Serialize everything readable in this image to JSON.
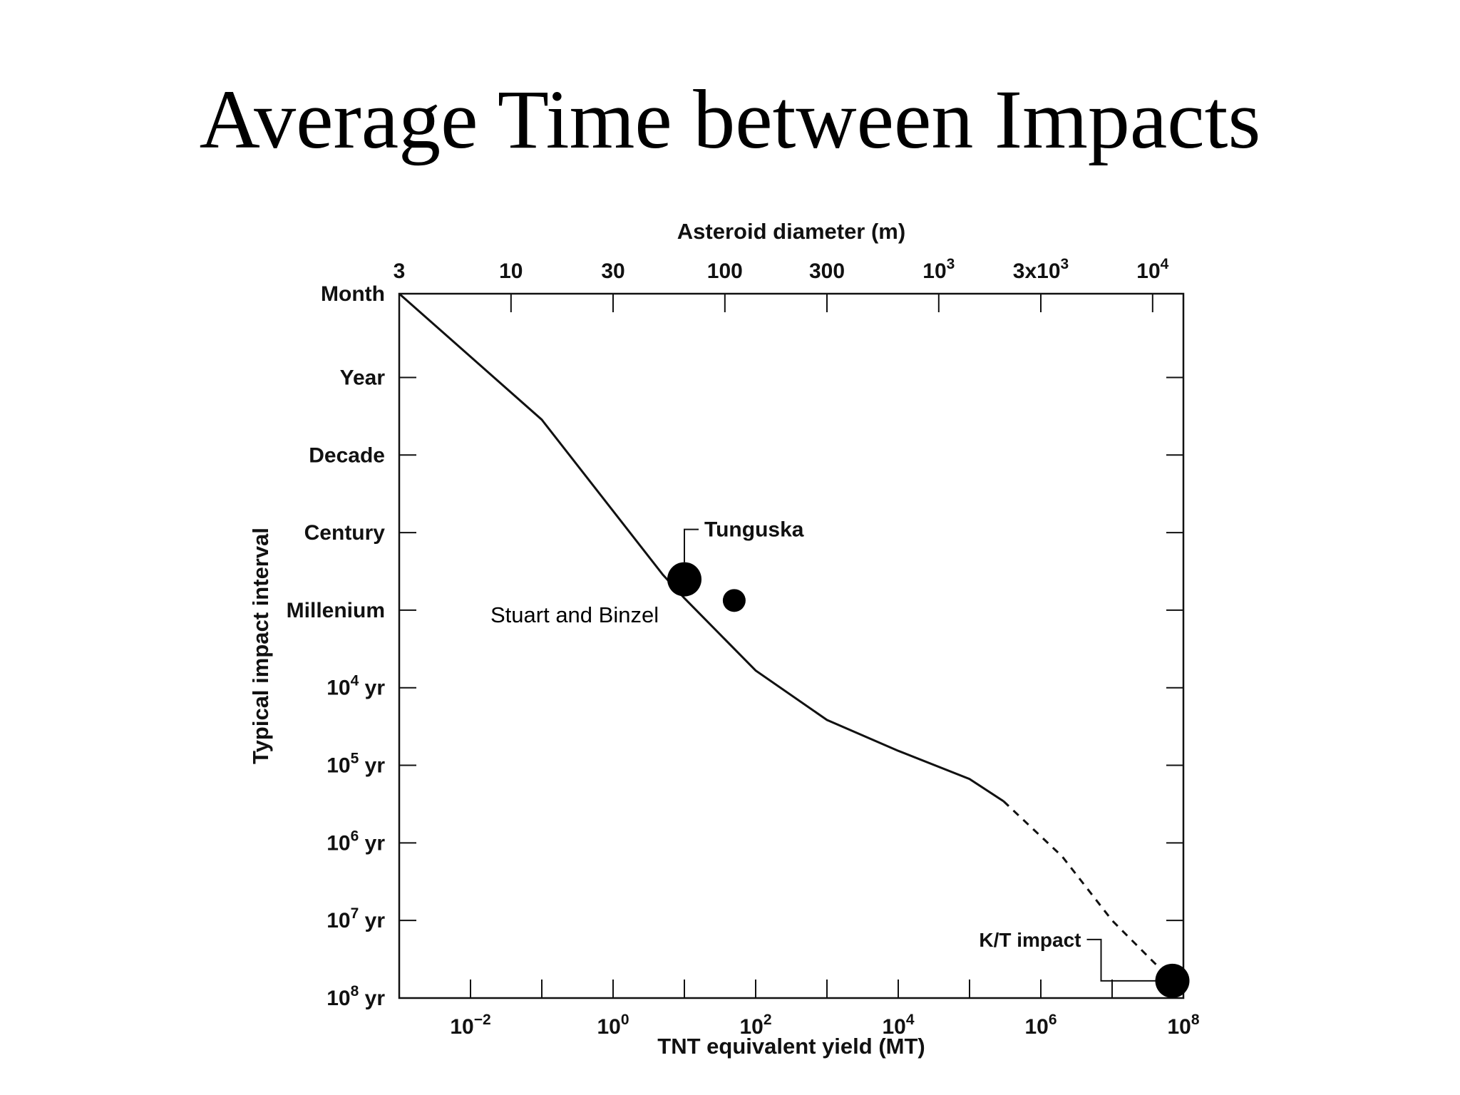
{
  "slide": {
    "title": "Average Time between Impacts"
  },
  "colors": {
    "ink": "#111111",
    "background": "#ffffff"
  },
  "chart_data": {
    "type": "line",
    "title": "",
    "xlabel": "TNT equivalent yield (MT)",
    "ylabel": "Typical impact interval",
    "x2label": "Asteroid diameter (m)",
    "x_scale": "log",
    "y_scale": "log",
    "xlim": [
      0.001,
      100000000
    ],
    "ylim": [
      0.0833,
      100000000
    ],
    "grid": false,
    "x_ticks": [
      {
        "value": 0.01,
        "base": "10",
        "exp": "−2"
      },
      {
        "value": 1,
        "base": "10",
        "exp": "0"
      },
      {
        "value": 100,
        "base": "10",
        "exp": "2"
      },
      {
        "value": 10000,
        "base": "10",
        "exp": "4"
      },
      {
        "value": 1000000,
        "base": "10",
        "exp": "6"
      },
      {
        "value": 100000000,
        "base": "10",
        "exp": "8"
      }
    ],
    "y_ticks": [
      {
        "value": 0.0833,
        "label": "Month"
      },
      {
        "value": 1,
        "label": "Year"
      },
      {
        "value": 10,
        "label": "Decade"
      },
      {
        "value": 100,
        "label": "Century"
      },
      {
        "value": 1000,
        "label": "Millenium"
      },
      {
        "value": 10000,
        "base": "10",
        "exp": "4",
        "unit": " yr"
      },
      {
        "value": 100000,
        "base": "10",
        "exp": "5",
        "unit": " yr"
      },
      {
        "value": 1000000,
        "base": "10",
        "exp": "6",
        "unit": " yr"
      },
      {
        "value": 10000000,
        "base": "10",
        "exp": "7",
        "unit": " yr"
      },
      {
        "value": 100000000,
        "base": "10",
        "exp": "8",
        "unit": " yr"
      }
    ],
    "top_ticks": [
      {
        "value": 0.001,
        "label": "3"
      },
      {
        "value": 0.037,
        "label": "10"
      },
      {
        "value": 1,
        "label": "30"
      },
      {
        "value": 37,
        "label": "100"
      },
      {
        "value": 1000,
        "label": "300"
      },
      {
        "value": 37000,
        "base": "10",
        "exp": "3"
      },
      {
        "value": 1000000,
        "label": "3x10",
        "exp": "3"
      },
      {
        "value": 37000000,
        "base": "10",
        "exp": "4"
      }
    ],
    "series": [
      {
        "style": "solid",
        "points": [
          {
            "x": 0.001,
            "y": 0.0833
          },
          {
            "x": 0.1,
            "y": 3.5
          },
          {
            "x": 5,
            "y": 350
          },
          {
            "x": 10,
            "y": 700
          },
          {
            "x": 100,
            "y": 6000
          },
          {
            "x": 1000,
            "y": 26000
          },
          {
            "x": 10000,
            "y": 65000
          },
          {
            "x": 100000,
            "y": 150000
          },
          {
            "x": 300000,
            "y": 290000
          }
        ]
      },
      {
        "style": "dashed",
        "points": [
          {
            "x": 300000,
            "y": 290000
          },
          {
            "x": 2000000,
            "y": 1500000
          },
          {
            "x": 10000000,
            "y": 10000000
          },
          {
            "x": 70000000,
            "y": 60000000
          }
        ]
      }
    ],
    "annotations": [
      {
        "name": "tunguska",
        "label": "Tunguska",
        "x": 10,
        "y": 400,
        "size": "large"
      },
      {
        "name": "stuart-binzel",
        "label": "Stuart and Binzel",
        "x": 50,
        "y": 750,
        "size": "small"
      },
      {
        "name": "kt-impact",
        "label": "K/T impact",
        "x": 70000000,
        "y": 60000000,
        "size": "large"
      }
    ]
  }
}
